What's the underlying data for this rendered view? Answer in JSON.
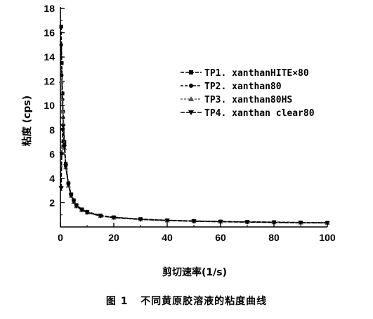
{
  "caption": {
    "number": "图 1",
    "text": "不同黄原胶溶液的粘度曲线"
  },
  "chart_data": {
    "type": "line",
    "title": "",
    "xlabel": "剪切速率(1/s)",
    "ylabel": "粘度 (cps)",
    "xlim": [
      0,
      100
    ],
    "ylim": [
      0,
      18
    ],
    "xticks": [
      0,
      20,
      40,
      60,
      80,
      100
    ],
    "yticks": [
      2,
      4,
      6,
      8,
      10,
      12,
      14,
      16,
      18
    ],
    "grid": false,
    "legend_position": "right",
    "series": [
      {
        "name": "TP1. xanthanHITE×80",
        "marker": "square",
        "x": [
          0.3,
          0.5,
          0.8,
          1.0,
          1.5,
          2,
          3,
          4,
          5,
          6,
          8,
          10,
          15,
          20,
          30,
          40,
          50,
          60,
          70,
          80,
          90,
          100
        ],
        "y": [
          16.5,
          13.5,
          11.0,
          9.5,
          7.0,
          5.2,
          3.6,
          2.7,
          2.2,
          1.8,
          1.45,
          1.25,
          0.95,
          0.8,
          0.65,
          0.55,
          0.5,
          0.45,
          0.42,
          0.4,
          0.37,
          0.35
        ]
      },
      {
        "name": "TP2. xanthan80",
        "marker": "circle",
        "x": [
          0.3,
          0.5,
          0.8,
          1.0,
          1.5,
          2,
          3,
          4,
          5,
          6,
          8,
          10,
          15,
          20,
          30,
          40,
          50,
          60,
          70,
          80,
          90,
          100
        ],
        "y": [
          15.0,
          12.5,
          10.5,
          9.0,
          6.8,
          5.0,
          3.5,
          2.6,
          2.1,
          1.75,
          1.4,
          1.2,
          0.92,
          0.78,
          0.63,
          0.54,
          0.48,
          0.44,
          0.41,
          0.38,
          0.36,
          0.34
        ]
      },
      {
        "name": "TP3. xanthan80HS",
        "marker": "triangle-up",
        "x": [
          0.3,
          0.5,
          0.8,
          1.0,
          1.5,
          2,
          3,
          4,
          5,
          6,
          8,
          10,
          15,
          20,
          30,
          40,
          50,
          60,
          70,
          80,
          90,
          100
        ],
        "y": [
          12.0,
          10.5,
          9.5,
          8.5,
          6.5,
          4.9,
          3.4,
          2.55,
          2.05,
          1.7,
          1.38,
          1.18,
          0.9,
          0.76,
          0.62,
          0.53,
          0.47,
          0.43,
          0.4,
          0.37,
          0.35,
          0.33
        ]
      },
      {
        "name": "TP4. xanthan clear80",
        "marker": "triangle-down",
        "x": [
          0.3,
          0.5,
          0.8,
          1.0,
          1.5,
          2,
          3,
          4,
          5,
          6,
          8,
          10,
          15,
          20,
          30,
          40,
          50,
          60,
          70,
          80,
          90,
          100
        ],
        "y": [
          3.2,
          6.0,
          8.0,
          8.3,
          6.6,
          5.0,
          3.5,
          2.6,
          2.1,
          1.72,
          1.4,
          1.2,
          0.91,
          0.77,
          0.62,
          0.53,
          0.47,
          0.43,
          0.4,
          0.37,
          0.35,
          0.33
        ]
      }
    ]
  }
}
